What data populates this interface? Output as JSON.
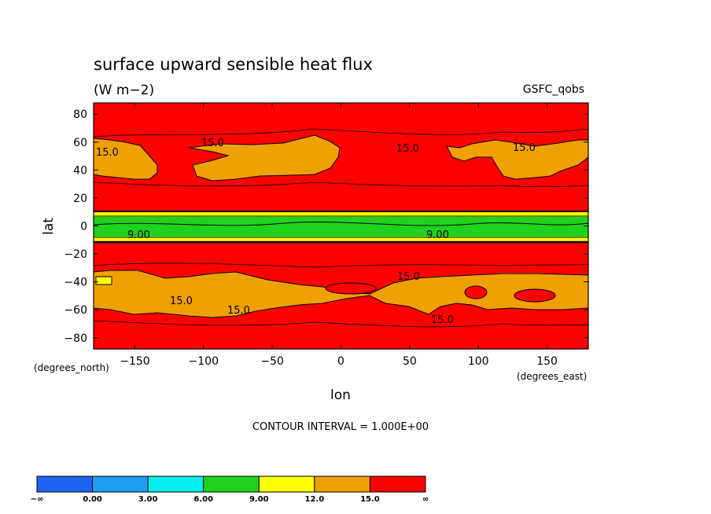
{
  "chart_data": {
    "type": "contour",
    "title": "surface upward sensible heat flux",
    "units": "(W m−2)",
    "source_label": "GSFC_qobs",
    "xlabel": "lon",
    "ylabel": "lat",
    "x_unit_label": "(degrees_east)",
    "y_unit_label": "(degrees_north)",
    "xlim": [
      -180,
      180
    ],
    "ylim": [
      -88,
      88
    ],
    "x_ticks": [
      -150,
      -100,
      -50,
      0,
      50,
      100,
      150
    ],
    "y_ticks": [
      80,
      60,
      40,
      20,
      0,
      -20,
      -40,
      -60,
      -80
    ],
    "contour_interval_text": "CONTOUR INTERVAL = 1.000E+00",
    "contour_labels": [
      "15.0",
      "9.00"
    ],
    "colorbar": {
      "levels": [
        "−∞",
        "0.00",
        "3.00",
        "6.00",
        "9.00",
        "12.0",
        "15.0",
        "∞"
      ],
      "colors": [
        "#1e64f0",
        "#1e9ef0",
        "#00f0f0",
        "#1ed21e",
        "#ffff00",
        "#f0a000",
        "#ff0000"
      ]
    },
    "bands": [
      {
        "lat_range": [
          62,
          88
        ],
        "category": "15.0 to ∞"
      },
      {
        "lat_range": [
          23,
          62
        ],
        "category": "mixed 12.0–15.0 and 15.0 to ∞"
      },
      {
        "lat_range": [
          10,
          23
        ],
        "category": "15.0 to ∞"
      },
      {
        "lat_range": [
          -9,
          10
        ],
        "category": "6.00–9.00 with 9.00–12.0 edges"
      },
      {
        "lat_range": [
          -30,
          -9
        ],
        "category": "15.0 to ∞"
      },
      {
        "lat_range": [
          -65,
          -30
        ],
        "category": "mixed 12.0–15.0 and 15.0 to ∞"
      },
      {
        "lat_range": [
          -88,
          -65
        ],
        "category": "15.0 to ∞"
      }
    ]
  }
}
